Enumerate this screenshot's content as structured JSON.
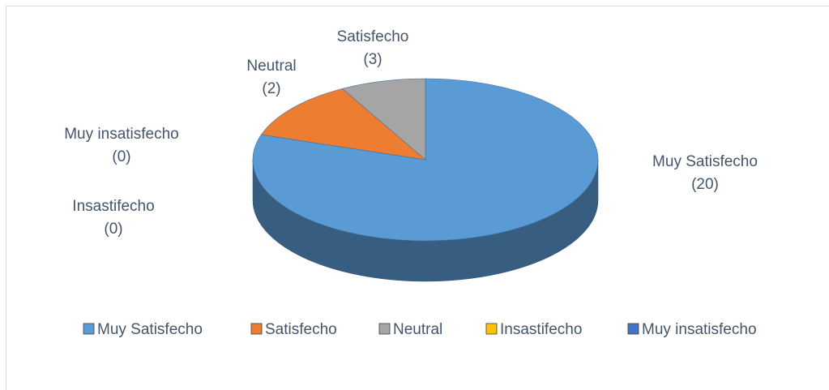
{
  "chart_data": {
    "type": "pie3d",
    "categories": [
      "Muy Satisfecho",
      "Satisfecho",
      "Neutral",
      "Insastifecho",
      "Muy insatisfecho"
    ],
    "values": [
      20,
      3,
      2,
      0,
      0
    ],
    "value_labels": [
      "(20)",
      "(3)",
      "(2)",
      "(0)",
      "(0)"
    ],
    "colors": [
      "#5b9bd5",
      "#ed7d31",
      "#a5a5a5",
      "#ffc000",
      "#4472c4"
    ],
    "legend": "bottom"
  }
}
